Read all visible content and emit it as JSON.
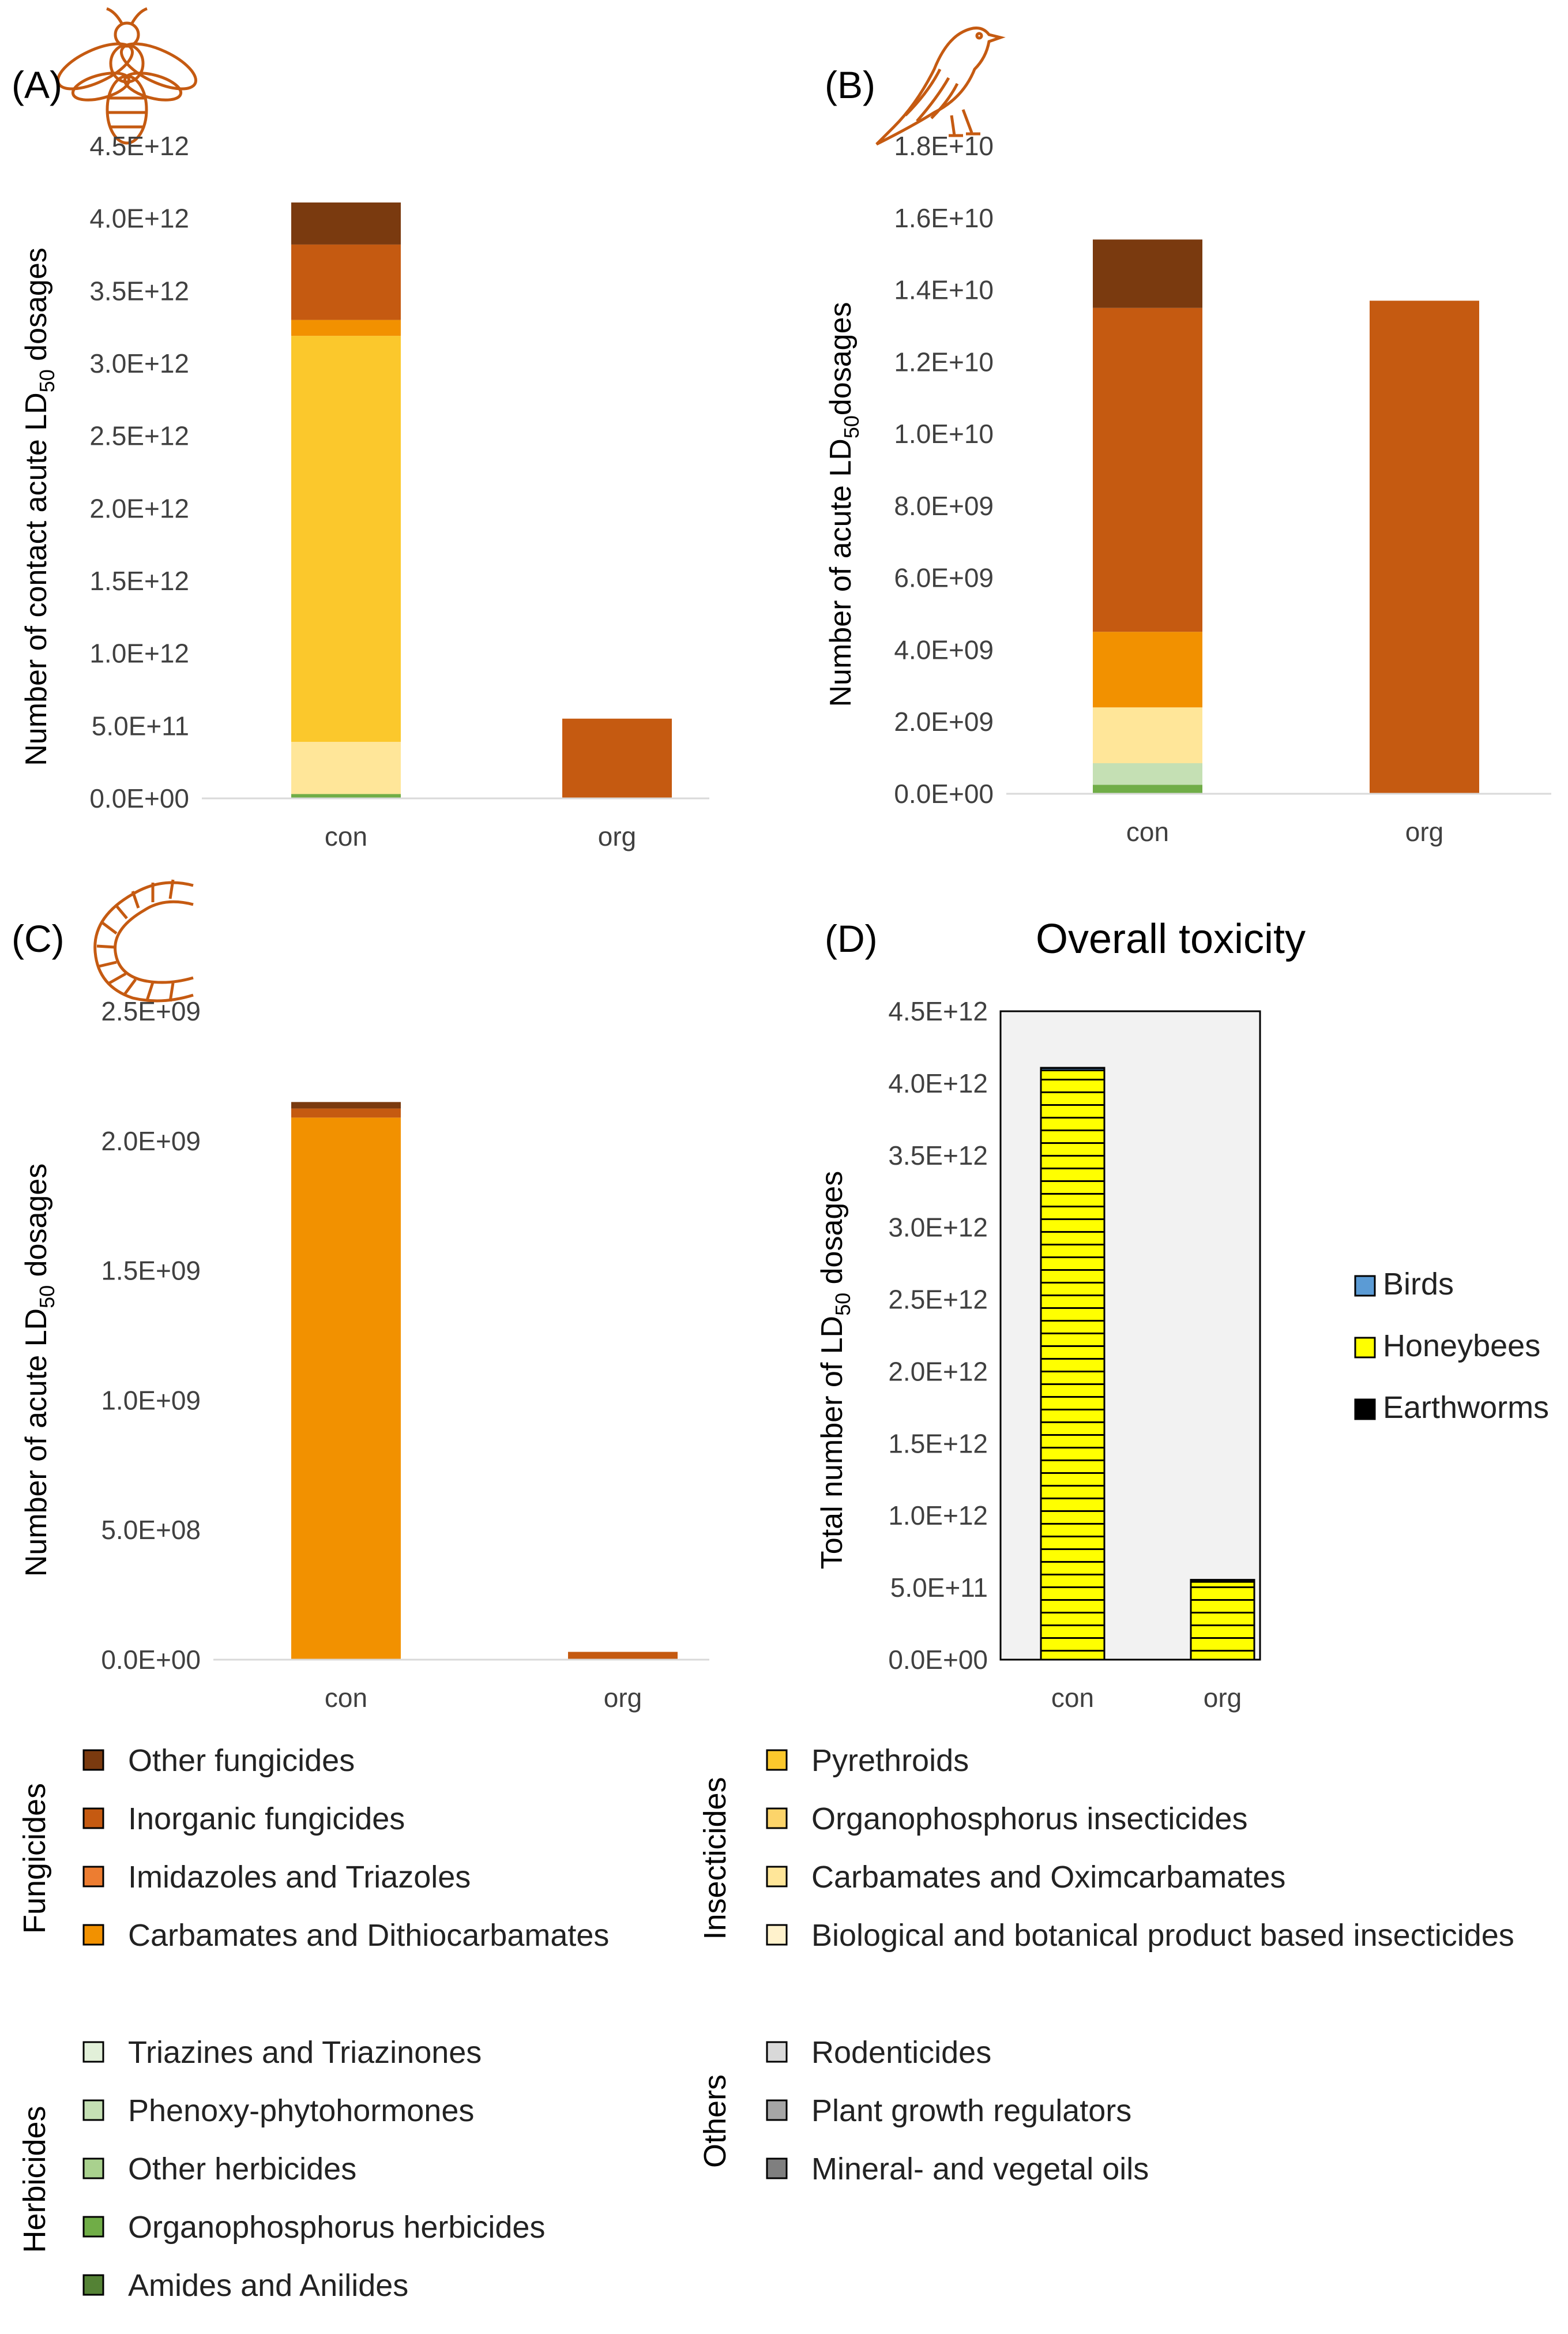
{
  "colors": {
    "other_fungicides": "#7a3a0f",
    "inorganic_fungicides": "#c55a11",
    "imidazoles_triazoles": "#ed7d31",
    "carbamates_dithiocarbamates": "#f29100",
    "pyrethroids": "#fbc82c",
    "organophosphorus_insecticides": "#fcd46a",
    "carbamates_oximcarbamates": "#ffe699",
    "biological_botanical": "#fff2cc",
    "triazines_triazinones": "#e2f0d9",
    "phenoxy_phytohormones": "#c5e0b4",
    "other_herbicides": "#a9d18e",
    "organophosphorus_herbicides": "#70ad47",
    "amides_anilides": "#548235",
    "rodenticides": "#d9d9d9",
    "plant_growth_regulators": "#a6a6a6",
    "mineral_vegetal_oils": "#7f7f7f",
    "birds": "#5b9bd5",
    "honeybees": "#ffff00",
    "earthworms": "#000000"
  },
  "chart_data": [
    {
      "type": "bar",
      "stacked": true,
      "panel_label": "(A)",
      "icon": "bee-icon",
      "ylabel_prefix": "Number of contact acute LD",
      "ylabel_sub": "50",
      "ylabel_suffix": " dosages",
      "categories": [
        "con",
        "org"
      ],
      "ylim": [
        0,
        4500000000000
      ],
      "yticks": [
        {
          "v": 0,
          "label": "0.0E+00"
        },
        {
          "v": 500000000000,
          "label": "5.0E+11"
        },
        {
          "v": 1000000000000,
          "label": "1.0E+12"
        },
        {
          "v": 1500000000000,
          "label": "1.5E+12"
        },
        {
          "v": 2000000000000,
          "label": "2.0E+12"
        },
        {
          "v": 2500000000000,
          "label": "2.5E+12"
        },
        {
          "v": 3000000000000,
          "label": "3.0E+12"
        },
        {
          "v": 3500000000000,
          "label": "3.5E+12"
        },
        {
          "v": 4000000000000,
          "label": "4.0E+12"
        },
        {
          "v": 4500000000000,
          "label": "4.5E+12"
        }
      ],
      "series": [
        {
          "name": "Organophosphorus herbicides",
          "color_key": "organophosphorus_herbicides",
          "values": [
            30000000000,
            0
          ]
        },
        {
          "name": "Carbamates and Oximcarbamates",
          "color_key": "carbamates_oximcarbamates",
          "values": [
            360000000000,
            0
          ]
        },
        {
          "name": "Pyrethroids",
          "color_key": "pyrethroids",
          "values": [
            2800000000000,
            0
          ]
        },
        {
          "name": "Carbamates and Dithiocarbamates",
          "color_key": "carbamates_dithiocarbamates",
          "values": [
            110000000000,
            0
          ]
        },
        {
          "name": "Inorganic fungicides",
          "color_key": "inorganic_fungicides",
          "values": [
            520000000000,
            550000000000
          ]
        },
        {
          "name": "Other fungicides",
          "color_key": "other_fungicides",
          "values": [
            290000000000,
            0
          ]
        }
      ]
    },
    {
      "type": "bar",
      "stacked": true,
      "panel_label": "(B)",
      "icon": "bird-icon",
      "ylabel_prefix": "Number of acute LD",
      "ylabel_sub": "50",
      "ylabel_suffix": "dosages",
      "categories": [
        "con",
        "org"
      ],
      "ylim": [
        0,
        18000000000
      ],
      "yticks": [
        {
          "v": 0,
          "label": "0.0E+00"
        },
        {
          "v": 2000000000,
          "label": "2.0E+09"
        },
        {
          "v": 4000000000,
          "label": "4.0E+09"
        },
        {
          "v": 6000000000,
          "label": "6.0E+09"
        },
        {
          "v": 8000000000,
          "label": "8.0E+09"
        },
        {
          "v": 10000000000,
          "label": "1.0E+10"
        },
        {
          "v": 12000000000,
          "label": "1.2E+10"
        },
        {
          "v": 14000000000,
          "label": "1.4E+10"
        },
        {
          "v": 16000000000,
          "label": "1.6E+10"
        },
        {
          "v": 18000000000,
          "label": "1.8E+10"
        }
      ],
      "series": [
        {
          "name": "Organophosphorus herbicides",
          "color_key": "organophosphorus_herbicides",
          "values": [
            250000000,
            0
          ]
        },
        {
          "name": "Phenoxy-phytohormones",
          "color_key": "phenoxy_phytohormones",
          "values": [
            600000000,
            0
          ]
        },
        {
          "name": "Carbamates and Oximcarbamates",
          "color_key": "carbamates_oximcarbamates",
          "values": [
            1550000000,
            0
          ]
        },
        {
          "name": "Carbamates and Dithiocarbamates",
          "color_key": "carbamates_dithiocarbamates",
          "values": [
            2100000000,
            0
          ]
        },
        {
          "name": "Inorganic fungicides",
          "color_key": "inorganic_fungicides",
          "values": [
            9000000000,
            13700000000
          ]
        },
        {
          "name": "Other fungicides",
          "color_key": "other_fungicides",
          "values": [
            1900000000,
            0
          ]
        }
      ]
    },
    {
      "type": "bar",
      "stacked": true,
      "panel_label": "(C)",
      "icon": "earthworm-icon",
      "ylabel_prefix": "Number of acute LD",
      "ylabel_sub": "50",
      "ylabel_suffix": " dosages",
      "categories": [
        "con",
        "org"
      ],
      "ylim": [
        0,
        2500000000
      ],
      "yticks": [
        {
          "v": 0,
          "label": "0.0E+00"
        },
        {
          "v": 500000000,
          "label": "5.0E+08"
        },
        {
          "v": 1000000000,
          "label": "1.0E+09"
        },
        {
          "v": 1500000000,
          "label": "1.5E+09"
        },
        {
          "v": 2000000000,
          "label": "2.0E+09"
        },
        {
          "v": 2500000000,
          "label": "2.5E+09"
        }
      ],
      "series": [
        {
          "name": "Carbamates and Dithiocarbamates",
          "color_key": "carbamates_dithiocarbamates",
          "values": [
            2090000000,
            0
          ]
        },
        {
          "name": "Inorganic fungicides",
          "color_key": "inorganic_fungicides",
          "values": [
            35000000,
            30000000
          ]
        },
        {
          "name": "Other fungicides",
          "color_key": "other_fungicides",
          "values": [
            25000000,
            0
          ]
        }
      ]
    },
    {
      "type": "bar",
      "stacked": true,
      "panel_label": "(D)",
      "title": "Overall toxicity",
      "ylabel_prefix": "Total number of LD",
      "ylabel_sub": "50",
      "ylabel_suffix": " dosages",
      "categories": [
        "con",
        "org"
      ],
      "ylim": [
        0,
        4500000000000
      ],
      "plot_background": "#f2f2f2",
      "yticks": [
        {
          "v": 0,
          "label": "0.0E+00"
        },
        {
          "v": 500000000000,
          "label": "5.0E+11"
        },
        {
          "v": 1000000000000,
          "label": "1.0E+12"
        },
        {
          "v": 1500000000000,
          "label": "1.5E+12"
        },
        {
          "v": 2000000000000,
          "label": "2.0E+12"
        },
        {
          "v": 2500000000000,
          "label": "2.5E+12"
        },
        {
          "v": 3000000000000,
          "label": "3.0E+12"
        },
        {
          "v": 3500000000000,
          "label": "3.5E+12"
        },
        {
          "v": 4000000000000,
          "label": "4.0E+12"
        },
        {
          "v": 4500000000000,
          "label": "4.5E+12"
        }
      ],
      "series": [
        {
          "name": "Honeybees",
          "color_key": "honeybees",
          "values": [
            4090000000000,
            540000000000
          ]
        },
        {
          "name": "Birds",
          "color_key": "birds",
          "values": [
            15400000000,
            13700000000
          ]
        },
        {
          "name": "Earthworms",
          "color_key": "earthworms",
          "values": [
            2150000000,
            30000000
          ]
        }
      ],
      "legend": [
        "Birds",
        "Honeybees",
        "Earthworms"
      ]
    }
  ],
  "legend": {
    "groups": [
      {
        "title": "Fungicides",
        "items": [
          {
            "label": "Other fungicides",
            "color_key": "other_fungicides"
          },
          {
            "label": "Inorganic fungicides",
            "color_key": "inorganic_fungicides"
          },
          {
            "label": "Imidazoles and Triazoles",
            "color_key": "imidazoles_triazoles"
          },
          {
            "label": "Carbamates and Dithiocarbamates",
            "color_key": "carbamates_dithiocarbamates"
          }
        ]
      },
      {
        "title": "Insecticides",
        "items": [
          {
            "label": "Pyrethroids",
            "color_key": "pyrethroids"
          },
          {
            "label": "Organophosphorus insecticides",
            "color_key": "organophosphorus_insecticides"
          },
          {
            "label": "Carbamates and Oximcarbamates",
            "color_key": "carbamates_oximcarbamates"
          },
          {
            "label": "Biological and botanical product based insecticides",
            "color_key": "biological_botanical"
          }
        ]
      },
      {
        "title": "Herbicides",
        "items": [
          {
            "label": "Triazines and Triazinones",
            "color_key": "triazines_triazinones"
          },
          {
            "label": "Phenoxy-phytohormones",
            "color_key": "phenoxy_phytohormones"
          },
          {
            "label": "Other herbicides",
            "color_key": "other_herbicides"
          },
          {
            "label": "Organophosphorus herbicides",
            "color_key": "organophosphorus_herbicides"
          },
          {
            "label": "Amides and Anilides",
            "color_key": "amides_anilides"
          }
        ]
      },
      {
        "title": "Others",
        "items": [
          {
            "label": "Rodenticides",
            "color_key": "rodenticides"
          },
          {
            "label": "Plant growth regulators",
            "color_key": "plant_growth_regulators"
          },
          {
            "label": "Mineral- and vegetal oils",
            "color_key": "mineral_vegetal_oils"
          }
        ]
      }
    ]
  }
}
